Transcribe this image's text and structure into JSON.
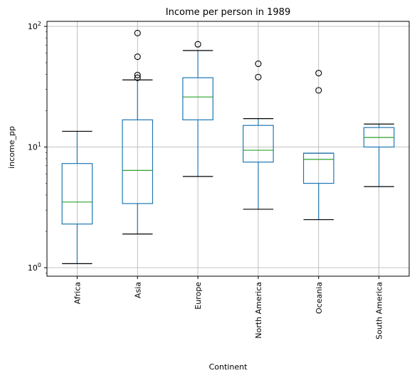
{
  "chart_data": {
    "type": "box",
    "title": "Income per person in 1989",
    "xlabel": "Continent",
    "ylabel": "income_pp",
    "yscale": "log",
    "ylim": [
      0.85,
      110
    ],
    "grid": true,
    "yticks": [
      {
        "value": 1,
        "base": "10",
        "exp": "0"
      },
      {
        "value": 10,
        "base": "10",
        "exp": "1"
      },
      {
        "value": 100,
        "base": "10",
        "exp": "2"
      }
    ],
    "categories": [
      "Africa",
      "Asia",
      "Europe",
      "North America",
      "Oceania",
      "South America"
    ],
    "boxes": [
      {
        "category": "Africa",
        "whisker_low": 1.08,
        "q1": 2.3,
        "median": 3.5,
        "q3": 7.3,
        "whisker_high": 13.5,
        "outliers": []
      },
      {
        "category": "Asia",
        "whisker_low": 1.9,
        "q1": 3.4,
        "median": 6.4,
        "q3": 16.8,
        "whisker_high": 36,
        "outliers": [
          37.5,
          39.5,
          56,
          88
        ]
      },
      {
        "category": "Europe",
        "whisker_low": 5.7,
        "q1": 16.8,
        "median": 26,
        "q3": 37.5,
        "whisker_high": 63,
        "outliers": [
          71
        ]
      },
      {
        "category": "North America",
        "whisker_low": 3.05,
        "q1": 7.5,
        "median": 9.4,
        "q3": 15.1,
        "whisker_high": 17.2,
        "outliers": [
          38,
          49
        ]
      },
      {
        "category": "Oceania",
        "whisker_low": 2.5,
        "q1": 5.0,
        "median": 7.9,
        "q3": 8.9,
        "whisker_high": 8.9,
        "outliers": [
          29.5,
          41
        ]
      },
      {
        "category": "South America",
        "whisker_low": 4.7,
        "q1": 10.0,
        "median": 12.0,
        "q3": 14.5,
        "whisker_high": 15.5,
        "outliers": []
      }
    ],
    "colors": {
      "box": "#1f77b4",
      "median": "#2ca02c",
      "whisker_cap": "#000000",
      "outlier": "#000000",
      "grid": "#b0b0b0",
      "axes": "#000000"
    }
  }
}
